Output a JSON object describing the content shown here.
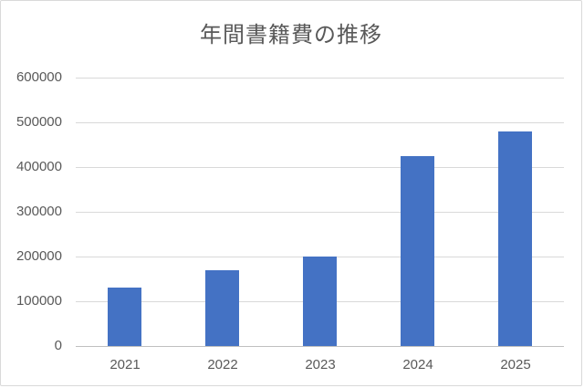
{
  "chart_data": {
    "type": "bar",
    "title": "年間書籍費の推移",
    "categories": [
      "2021",
      "2022",
      "2023",
      "2024",
      "2025"
    ],
    "values": [
      130000,
      170000,
      200000,
      425000,
      480000
    ],
    "xlabel": "",
    "ylabel": "",
    "ylim": [
      0,
      600000
    ],
    "ytick_interval": 100000,
    "ytick_labels": [
      "0",
      "100000",
      "200000",
      "300000",
      "400000",
      "500000",
      "600000"
    ],
    "grid": true,
    "legend": false,
    "colors": {
      "bar_fill": "#4472c4",
      "gridline": "#d9d9d9",
      "axis_line": "#bfbfbf",
      "text": "#595959",
      "background": "#ffffff",
      "frame_border": "#d9d9d9"
    }
  }
}
